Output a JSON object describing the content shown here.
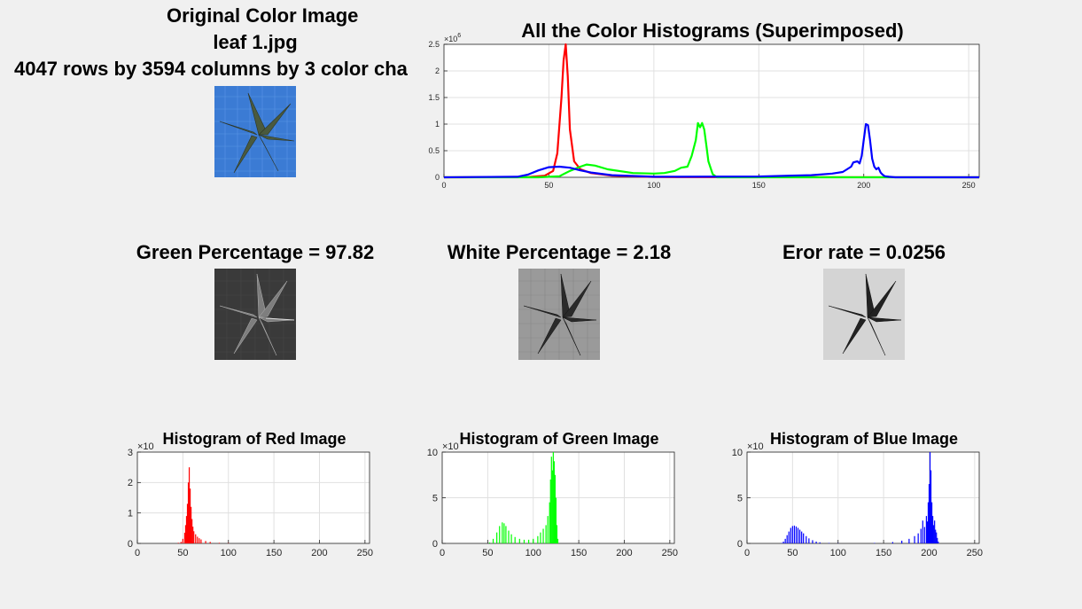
{
  "original": {
    "title_line1": "Original Color Image",
    "title_line2": "leaf 1.jpg",
    "title_line3": "4047 rows by 3594 columns by 3 color cha"
  },
  "green_pct": {
    "title": "Green Percentage =  97.82"
  },
  "white_pct": {
    "title": "White Percentage =   2.18"
  },
  "error_rate": {
    "title": "Eror rate = 0.0256"
  },
  "colors": {
    "red": "#ff0000",
    "green": "#00ff00",
    "blue": "#0000ff",
    "leaf_bg": "#3b7bd4"
  },
  "chart_data": [
    {
      "type": "line",
      "title": "All the Color Histograms (Superimposed)",
      "xlim": [
        0,
        255
      ],
      "ylim": [
        0,
        2500000
      ],
      "exponent_label": "×10",
      "exponent_power": "6",
      "xticks": [
        "0",
        "50",
        "100",
        "150",
        "200",
        "250"
      ],
      "xtick_values": [
        0,
        50,
        100,
        150,
        200,
        250
      ],
      "yticks": [
        "0",
        "0.5",
        "1",
        "1.5",
        "2",
        "2.5"
      ],
      "ytick_values": [
        0,
        500000,
        1000000,
        1500000,
        2000000,
        2500000
      ],
      "grid": true,
      "series": [
        {
          "color": "#ff0000",
          "x": [
            0,
            40,
            48,
            52,
            54,
            56,
            57,
            58,
            59,
            60,
            62,
            65,
            70,
            80,
            100,
            255
          ],
          "y": [
            0,
            5000,
            30000,
            120000,
            450000,
            1500000,
            2200000,
            2500000,
            1900000,
            900000,
            300000,
            150000,
            80000,
            30000,
            5000,
            0
          ]
        },
        {
          "color": "#00ff00",
          "x": [
            0,
            45,
            55,
            60,
            65,
            68,
            72,
            78,
            90,
            100,
            105,
            110,
            113,
            116,
            118,
            120,
            121,
            122,
            123,
            124,
            125,
            126,
            128,
            130,
            255
          ],
          "y": [
            0,
            0,
            20000,
            120000,
            200000,
            240000,
            220000,
            150000,
            80000,
            70000,
            80000,
            120000,
            180000,
            200000,
            400000,
            700000,
            1020000,
            940000,
            1020000,
            900000,
            600000,
            300000,
            60000,
            0,
            0
          ]
        },
        {
          "color": "#0000ff",
          "x": [
            0,
            35,
            40,
            45,
            50,
            55,
            60,
            65,
            70,
            80,
            100,
            150,
            175,
            185,
            190,
            192,
            194,
            195,
            197,
            198,
            199,
            200,
            201,
            202,
            203,
            204,
            205,
            206,
            207,
            208,
            209,
            210,
            212,
            215,
            255
          ],
          "y": [
            0,
            10000,
            50000,
            130000,
            190000,
            200000,
            180000,
            130000,
            90000,
            40000,
            10000,
            15000,
            40000,
            70000,
            100000,
            150000,
            200000,
            280000,
            300000,
            260000,
            400000,
            700000,
            1000000,
            980000,
            700000,
            350000,
            200000,
            150000,
            180000,
            90000,
            50000,
            20000,
            10000,
            0,
            0
          ]
        }
      ]
    },
    {
      "type": "bar",
      "title": "Histogram of Red Image",
      "color": "#ff0000",
      "xlim": [
        0,
        255
      ],
      "ylim": [
        0,
        3
      ],
      "exponent_label": "×10",
      "xticks": [
        "0",
        "50",
        "100",
        "150",
        "200",
        "250"
      ],
      "xtick_values": [
        0,
        50,
        100,
        150,
        200,
        250
      ],
      "yticks": [
        "0",
        "1",
        "2",
        "3"
      ],
      "ytick_values": [
        0,
        1,
        2,
        3
      ],
      "grid": true,
      "x": [
        45,
        48,
        50,
        52,
        53,
        54,
        55,
        56,
        57,
        58,
        59,
        60,
        61,
        62,
        64,
        66,
        68,
        70,
        75,
        80,
        90,
        100
      ],
      "values": [
        0.02,
        0.05,
        0.15,
        0.35,
        0.6,
        0.9,
        1.3,
        2.0,
        2.5,
        1.8,
        1.2,
        0.8,
        0.55,
        0.4,
        0.3,
        0.22,
        0.17,
        0.13,
        0.08,
        0.05,
        0.02,
        0.01
      ]
    },
    {
      "type": "bar",
      "title": "Histogram of Green Image",
      "color": "#00ff00",
      "xlim": [
        0,
        255
      ],
      "ylim": [
        0,
        10
      ],
      "exponent_label": "×10",
      "xticks": [
        "0",
        "50",
        "100",
        "150",
        "200",
        "250"
      ],
      "xtick_values": [
        0,
        50,
        100,
        150,
        200,
        250
      ],
      "yticks": [
        "0",
        "5",
        "10"
      ],
      "ytick_values": [
        0,
        5,
        10
      ],
      "grid": true,
      "x": [
        52,
        56,
        60,
        63,
        66,
        68,
        70,
        73,
        76,
        80,
        85,
        90,
        95,
        100,
        105,
        108,
        111,
        114,
        116,
        118,
        119,
        120,
        121,
        122,
        123,
        124,
        125,
        126,
        127
      ],
      "values": [
        0.1,
        0.5,
        1.2,
        1.9,
        2.3,
        2.2,
        1.9,
        1.4,
        1.0,
        0.7,
        0.5,
        0.4,
        0.4,
        0.5,
        0.8,
        1.2,
        1.6,
        2.0,
        3.0,
        4.5,
        7.0,
        9.5,
        8.0,
        10.0,
        9.0,
        7.5,
        5.0,
        2.0,
        0.5
      ]
    },
    {
      "type": "bar",
      "title": "Histogram of Blue Image",
      "color": "#0000ff",
      "xlim": [
        0,
        255
      ],
      "ylim": [
        0,
        10
      ],
      "exponent_label": "×10",
      "xticks": [
        "0",
        "50",
        "100",
        "150",
        "200",
        "250"
      ],
      "xtick_values": [
        0,
        50,
        100,
        150,
        200,
        250
      ],
      "yticks": [
        "0",
        "5",
        "10"
      ],
      "ytick_values": [
        0,
        5,
        10
      ],
      "grid": true,
      "x": [
        38,
        40,
        42,
        44,
        46,
        48,
        50,
        52,
        54,
        56,
        58,
        60,
        62,
        65,
        68,
        72,
        76,
        80,
        90,
        100,
        140,
        160,
        170,
        178,
        184,
        188,
        191,
        193,
        195,
        197,
        198,
        199,
        200,
        201,
        202,
        203,
        204,
        205,
        206,
        207,
        208,
        209,
        210
      ],
      "values": [
        0.05,
        0.2,
        0.5,
        0.9,
        1.3,
        1.7,
        1.9,
        1.95,
        1.85,
        1.7,
        1.5,
        1.3,
        1.1,
        0.8,
        0.55,
        0.35,
        0.2,
        0.12,
        0.05,
        0.02,
        0.05,
        0.15,
        0.3,
        0.5,
        0.8,
        1.1,
        1.6,
        2.5,
        1.8,
        3.0,
        2.4,
        4.5,
        6.5,
        10.0,
        8.0,
        4.5,
        3.0,
        2.0,
        2.5,
        1.5,
        1.2,
        0.6,
        0.2
      ]
    }
  ]
}
